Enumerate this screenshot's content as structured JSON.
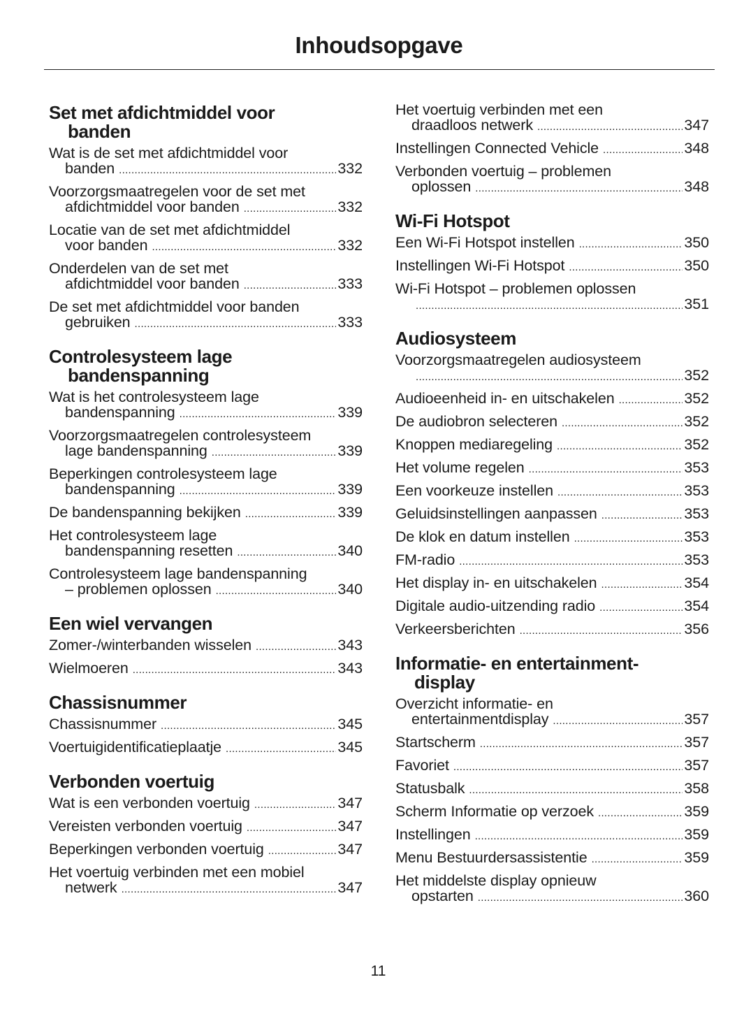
{
  "title": "Inhoudsopgave",
  "page_number": "11",
  "columns": [
    [
      {
        "heading": [
          "Set met afdichtmiddel voor",
          "banden"
        ],
        "entries": [
          {
            "line1": "Wat is de set met afdichtmiddel voor",
            "line2": "banden",
            "page": "332"
          },
          {
            "line1": "Voorzorgsmaatregelen voor de set met",
            "line2": "afdichtmiddel voor banden",
            "page": "332"
          },
          {
            "line1": "Locatie van de set met afdichtmiddel",
            "line2": "voor banden",
            "page": "332"
          },
          {
            "line1": "Onderdelen van de set met",
            "line2": "afdichtmiddel voor banden",
            "page": "333"
          },
          {
            "line1": "De set met afdichtmiddel voor banden",
            "line2": "gebruiken",
            "page": "333"
          }
        ]
      },
      {
        "heading": [
          "Controlesysteem lage",
          "bandenspanning"
        ],
        "entries": [
          {
            "line1": "Wat is het controlesysteem lage",
            "line2": "bandenspanning",
            "page": "339"
          },
          {
            "line1": "Voorzorgsmaatregelen controlesysteem",
            "line2": "lage bandenspanning",
            "page": "339"
          },
          {
            "line1": "Beperkingen controlesysteem lage",
            "line2": "bandenspanning",
            "page": "339"
          },
          {
            "line1": "De bandenspanning bekijken",
            "page": "339"
          },
          {
            "line1": "Het controlesysteem lage",
            "line2": "bandenspanning resetten",
            "page": "340"
          },
          {
            "line1": "Controlesysteem lage bandenspanning",
            "line2": "– problemen oplossen",
            "page": "340"
          }
        ]
      },
      {
        "heading": [
          "Een wiel vervangen"
        ],
        "entries": [
          {
            "line1": "Zomer-/winterbanden wisselen",
            "page": "343"
          },
          {
            "line1": "Wielmoeren",
            "page": "343"
          }
        ]
      },
      {
        "heading": [
          "Chassisnummer"
        ],
        "entries": [
          {
            "line1": "Chassisnummer",
            "page": "345"
          },
          {
            "line1": "Voertuigidentificatieplaatje",
            "page": "345"
          }
        ]
      },
      {
        "heading": [
          "Verbonden voertuig"
        ],
        "entries": [
          {
            "line1": "Wat is een verbonden voertuig",
            "page": "347"
          },
          {
            "line1": "Vereisten verbonden voertuig",
            "page": "347"
          },
          {
            "line1": "Beperkingen verbonden voertuig",
            "page": "347"
          },
          {
            "line1": "Het voertuig verbinden met een mobiel",
            "line2": "netwerk",
            "page": "347"
          }
        ]
      }
    ],
    [
      {
        "heading": [],
        "entries": [
          {
            "line1": "Het voertuig verbinden met een",
            "line2": "draadloos netwerk",
            "page": "347"
          },
          {
            "line1": "Instellingen Connected Vehicle",
            "page": "348"
          },
          {
            "line1": "Verbonden voertuig – problemen",
            "line2": "oplossen",
            "page": "348"
          }
        ]
      },
      {
        "heading": [
          "Wi-Fi Hotspot"
        ],
        "entries": [
          {
            "line1": "Een Wi-Fi Hotspot instellen",
            "page": "350"
          },
          {
            "line1": "Instellingen Wi-Fi Hotspot",
            "page": "350"
          },
          {
            "line1": "Wi-Fi Hotspot – problemen oplossen",
            "line2": "",
            "page": "351"
          }
        ]
      },
      {
        "heading": [
          "Audiosysteem"
        ],
        "entries": [
          {
            "line1": "Voorzorgsmaatregelen audiosysteem",
            "line2": "",
            "page": "352"
          },
          {
            "line1": "Audioeenheid in- en uitschakelen",
            "page": "352"
          },
          {
            "line1": "De audiobron selecteren",
            "page": "352"
          },
          {
            "line1": "Knoppen mediaregeling",
            "page": "352"
          },
          {
            "line1": "Het volume regelen",
            "page": "353"
          },
          {
            "line1": "Een voorkeuze instellen",
            "page": "353"
          },
          {
            "line1": "Geluidsinstellingen aanpassen",
            "page": "353"
          },
          {
            "line1": "De klok en datum instellen",
            "page": "353"
          },
          {
            "line1": "FM-radio",
            "page": "353"
          },
          {
            "line1": "Het display in- en uitschakelen",
            "page": "354"
          },
          {
            "line1": "Digitale audio-uitzending radio",
            "page": "354"
          },
          {
            "line1": "Verkeersberichten",
            "page": "356"
          }
        ]
      },
      {
        "heading": [
          "Informatie- en entertainment-",
          "display"
        ],
        "entries": [
          {
            "line1": "Overzicht informatie- en",
            "line2": "entertainmentdisplay",
            "page": "357"
          },
          {
            "line1": "Startscherm",
            "page": "357"
          },
          {
            "line1": "Favoriet",
            "page": "357"
          },
          {
            "line1": "Statusbalk",
            "page": "358"
          },
          {
            "line1": "Scherm Informatie op verzoek",
            "page": "359"
          },
          {
            "line1": "Instellingen",
            "page": "359"
          },
          {
            "line1": "Menu Bestuurdersassistentie",
            "page": "359"
          },
          {
            "line1": "Het middelste display opnieuw",
            "line2": "opstarten",
            "page": "360"
          }
        ]
      }
    ]
  ]
}
